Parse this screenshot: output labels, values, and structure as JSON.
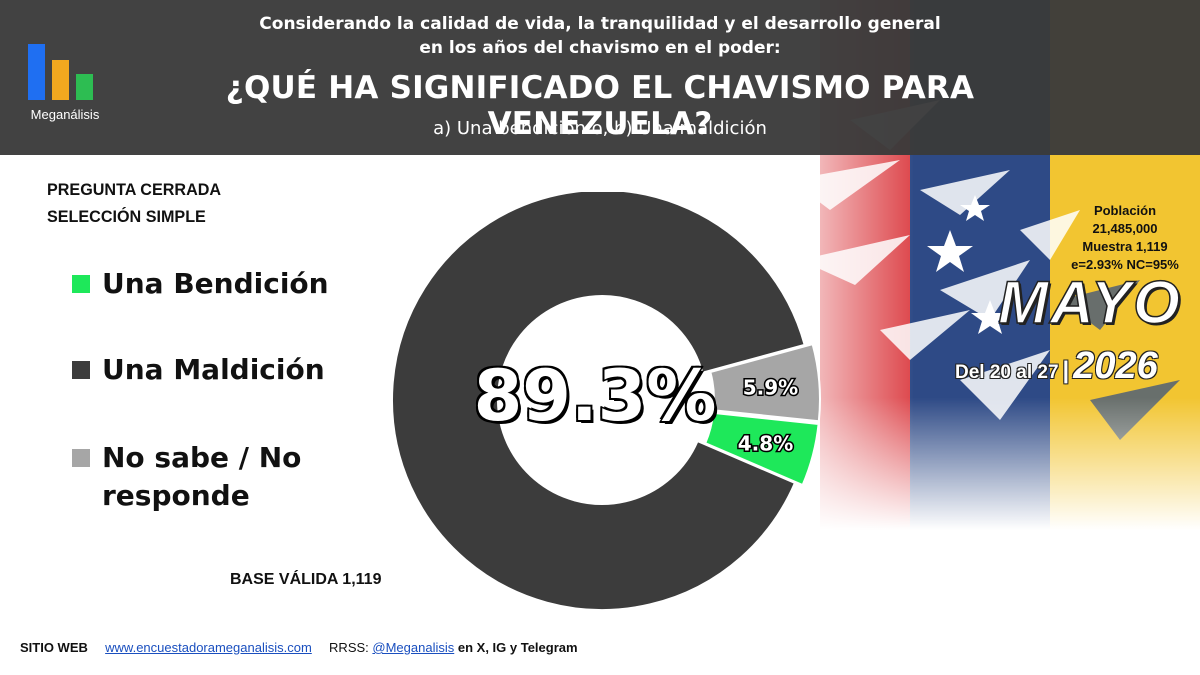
{
  "header": {
    "logo_text": "Meganálisis",
    "subtitle_line1": "Considerando la calidad de vida, la tranquilidad y el desarrollo general",
    "subtitle_line2": "en los años del chavismo en el poder:",
    "title": "¿QUÉ HA SIGNIFICADO EL CHAVISMO PARA VENEZUELA?",
    "options": "a) Una bendición o, b) Una maldición"
  },
  "question_type": {
    "line1": "PREGUNTA  CERRADA",
    "line2": "SELECCIÓN SIMPLE"
  },
  "chart_data": {
    "type": "pie",
    "variant": "donut",
    "categories": [
      "Una Bendición",
      "Una Maldición",
      "No sabe / No responde"
    ],
    "values": [
      4.8,
      89.3,
      5.9
    ],
    "value_labels": [
      "4.8%",
      "89.3%",
      "5.9%"
    ],
    "colors": [
      "#1ee85a",
      "#3c3c3c",
      "#a6a6a6"
    ],
    "legend_placement": "left"
  },
  "legend": {
    "items": [
      {
        "label": "Una Bendición",
        "color": "#1ee85a"
      },
      {
        "label": "Una Maldición",
        "color": "#3c3c3c"
      },
      {
        "label": "No sabe / No responde",
        "color": "#a6a6a6"
      }
    ]
  },
  "base": "BASE VÁLIDA 1,119",
  "fieldwork": {
    "population_label": "Población",
    "population": "21,485,000",
    "sample": "Muestra 1,119",
    "error": "e=2.93%  NC=95%",
    "month": "MAYO",
    "dates": "Del 20 al 27",
    "separator": "|",
    "year": "2026"
  },
  "footer": {
    "web_label": "SITIO WEB",
    "web_link": "www.encuestadorameganalisis.com",
    "rrss_label": "RRSS:",
    "rrss_handle": "@Meganalisis",
    "rrss_suffix": "en X, IG y Telegram"
  }
}
